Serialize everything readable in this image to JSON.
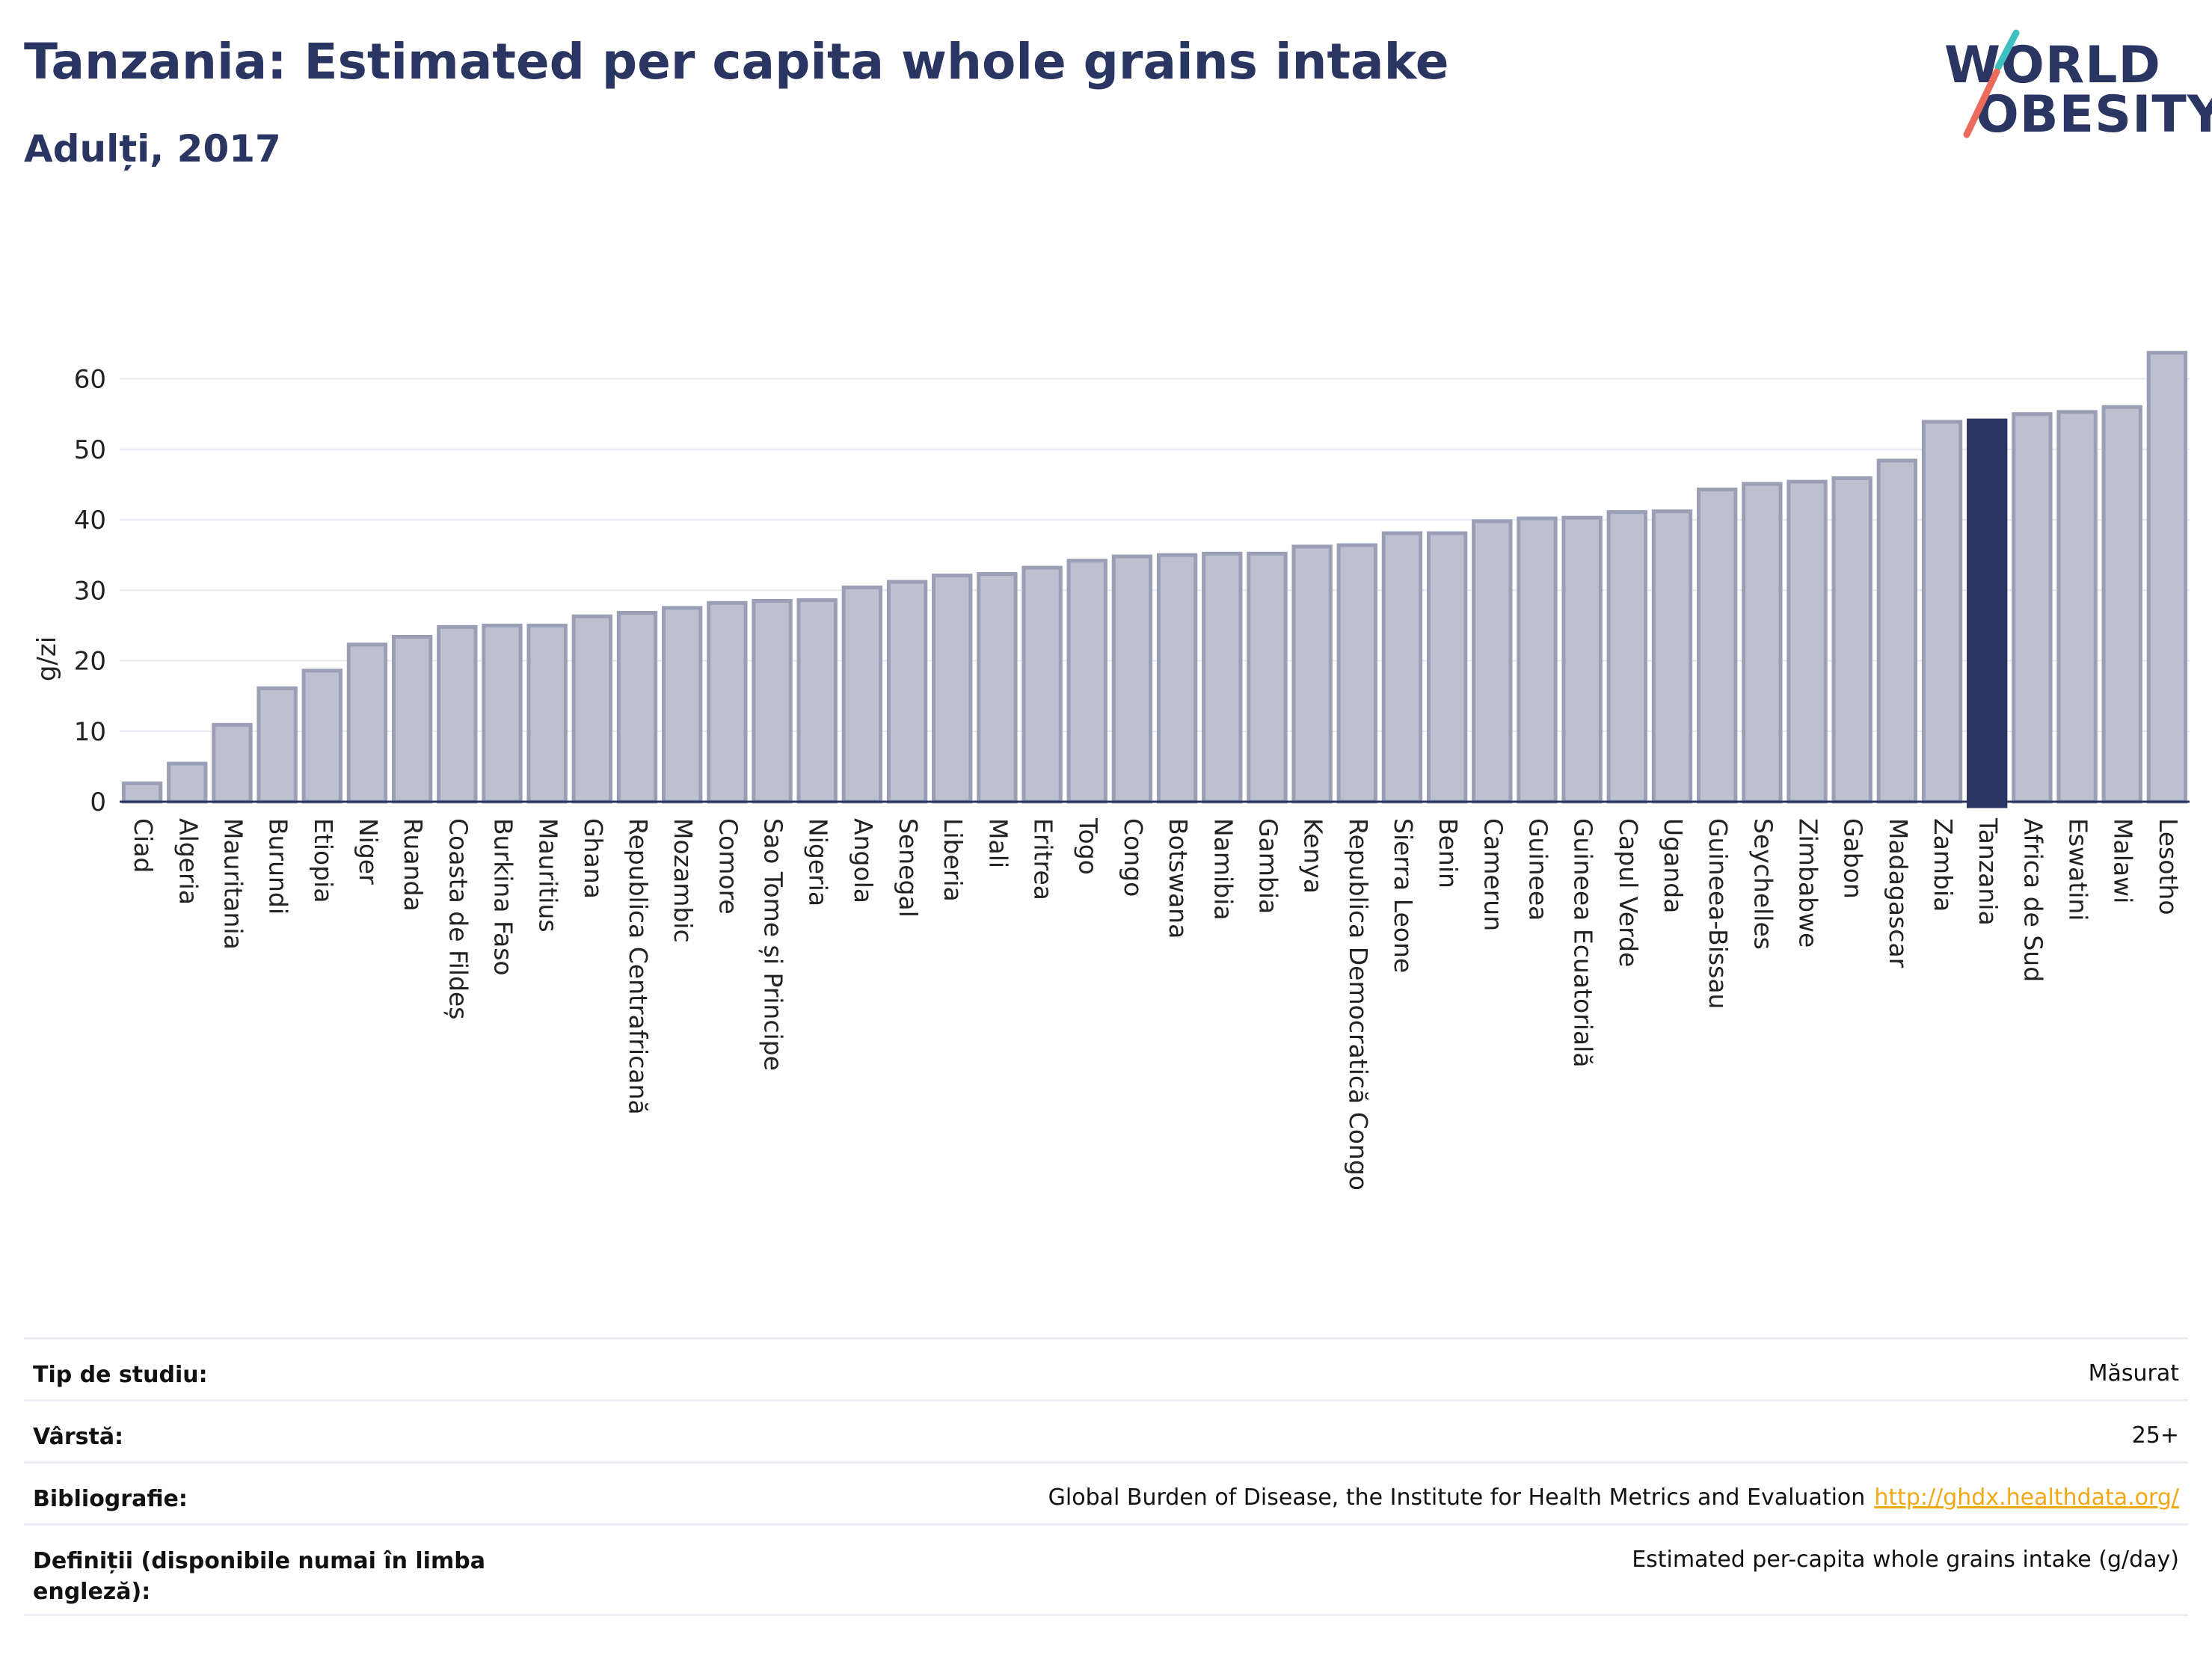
{
  "header": {
    "title": "Tanzania: Estimated per capita whole grains intake",
    "subtitle": "Adulți, 2017"
  },
  "logo": {
    "line1": "WORLD",
    "line2": "OBESITY",
    "accent_colors": [
      "#3ec0c0",
      "#ec6a5c"
    ]
  },
  "colors": {
    "bar_fill": "#bcc0cf",
    "bar_stroke": "#9a9fb6",
    "highlight": "#2b3561",
    "grid": "#e6e8ef",
    "title": "#2b3561",
    "link": "#f0a818"
  },
  "chart_data": {
    "type": "bar",
    "title": "Tanzania: Estimated per capita whole grains intake",
    "subtitle": "Adulți, 2017",
    "ylabel": "g/zi",
    "xlabel": "",
    "ylim": [
      0,
      66
    ],
    "yticks": [
      0,
      10,
      20,
      30,
      40,
      50,
      60
    ],
    "highlight": "Tanzania",
    "grid": true,
    "categories": [
      "Ciad",
      "Algeria",
      "Mauritania",
      "Burundi",
      "Etiopia",
      "Niger",
      "Ruanda",
      "Coasta de Fildeș",
      "Burkina Faso",
      "Mauritius",
      "Ghana",
      "Republica Centrafricană",
      "Mozambic",
      "Comore",
      "Sao Tome și Principe",
      "Nigeria",
      "Angola",
      "Senegal",
      "Liberia",
      "Mali",
      "Eritrea",
      "Togo",
      "Congo",
      "Botswana",
      "Namibia",
      "Gambia",
      "Kenya",
      "Republica Democratică Congo",
      "Sierra Leone",
      "Benin",
      "Camerun",
      "Guineea",
      "Guineea Ecuatorială",
      "Capul Verde",
      "Uganda",
      "Guineea-Bissau",
      "Seychelles",
      "Zimbabwe",
      "Gabon",
      "Madagascar",
      "Zambia",
      "Tanzania",
      "Africa de Sud",
      "Eswatini",
      "Malawi",
      "Lesotho"
    ],
    "values": [
      2.6,
      5.4,
      10.9,
      16.1,
      18.6,
      22.3,
      23.4,
      24.8,
      25.0,
      25.0,
      26.3,
      26.8,
      27.5,
      28.2,
      28.5,
      28.6,
      30.4,
      31.2,
      32.1,
      32.3,
      33.2,
      34.2,
      34.8,
      35.0,
      35.2,
      35.2,
      36.2,
      36.4,
      38.1,
      38.1,
      39.8,
      40.2,
      40.3,
      41.1,
      41.2,
      44.3,
      45.1,
      45.4,
      45.9,
      48.4,
      53.9,
      54.1,
      55.0,
      55.3,
      56.0,
      63.7
    ]
  },
  "info": {
    "rows": [
      {
        "label": "Tip de studiu:",
        "value": "Măsurat",
        "link": ""
      },
      {
        "label": "Vârstă:",
        "value": "25+",
        "link": ""
      },
      {
        "label": "Bibliografie:",
        "value": "Global Burden of Disease, the Institute for Health Metrics and Evaluation",
        "link": "http://ghdx.healthdata.org/"
      },
      {
        "label": "Definiții (disponibile numai în limba engleză):",
        "value": "Estimated per-capita whole grains intake (g/day)",
        "link": ""
      }
    ]
  }
}
